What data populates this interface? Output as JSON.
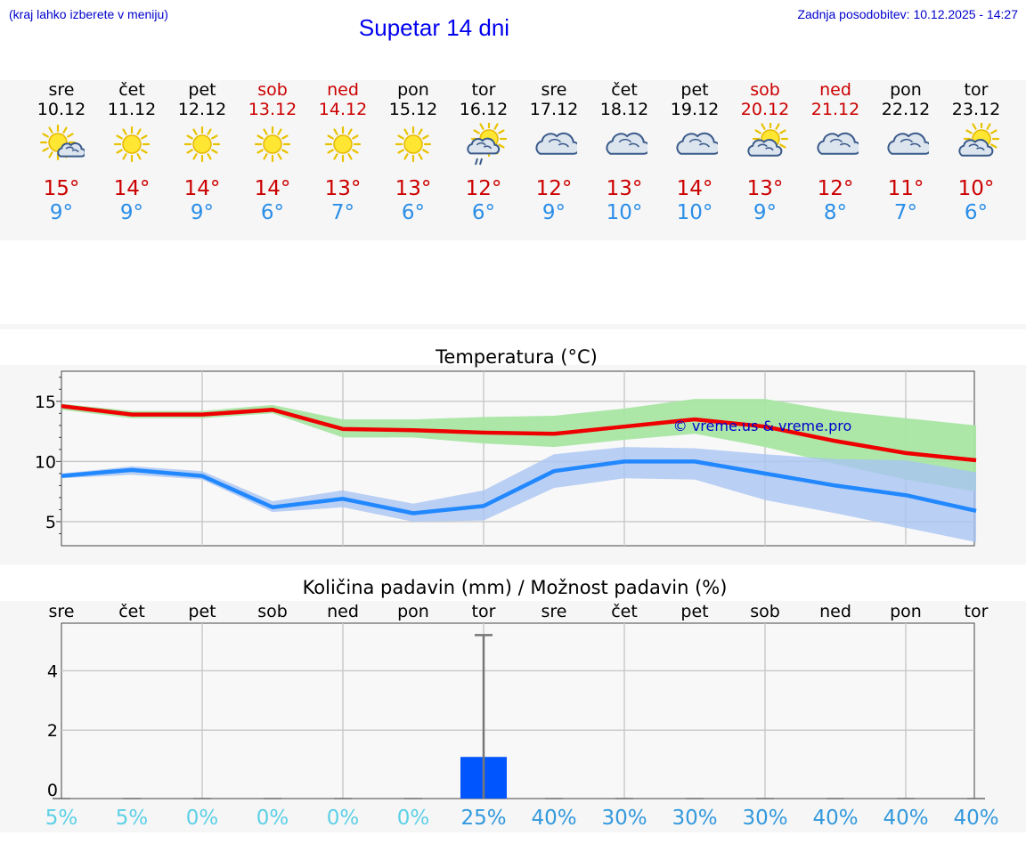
{
  "header": {
    "hint": "(kraj lahko izberete v meniju)",
    "title": "Supetar 14 dni",
    "updated": "Zadnja posodobitev: 10.12.2025 - 14:27"
  },
  "days": [
    {
      "name": "sre",
      "date": "10.12",
      "weekend": false,
      "icon": "sun-cloud",
      "max": "15°",
      "min": "9°"
    },
    {
      "name": "čet",
      "date": "11.12",
      "weekend": false,
      "icon": "sun",
      "max": "14°",
      "min": "9°"
    },
    {
      "name": "pet",
      "date": "12.12",
      "weekend": false,
      "icon": "sun",
      "max": "14°",
      "min": "9°"
    },
    {
      "name": "sob",
      "date": "13.12",
      "weekend": true,
      "icon": "sun",
      "max": "14°",
      "min": "6°"
    },
    {
      "name": "ned",
      "date": "14.12",
      "weekend": true,
      "icon": "sun",
      "max": "13°",
      "min": "7°"
    },
    {
      "name": "pon",
      "date": "15.12",
      "weekend": false,
      "icon": "sun",
      "max": "13°",
      "min": "6°"
    },
    {
      "name": "tor",
      "date": "16.12",
      "weekend": false,
      "icon": "sun-rain",
      "max": "12°",
      "min": "6°"
    },
    {
      "name": "sre",
      "date": "17.12",
      "weekend": false,
      "icon": "cloudy",
      "max": "12°",
      "min": "9°"
    },
    {
      "name": "čet",
      "date": "18.12",
      "weekend": false,
      "icon": "cloudy",
      "max": "13°",
      "min": "10°"
    },
    {
      "name": "pet",
      "date": "19.12",
      "weekend": false,
      "icon": "cloudy",
      "max": "14°",
      "min": "10°"
    },
    {
      "name": "sob",
      "date": "20.12",
      "weekend": true,
      "icon": "sun-cloud-big",
      "max": "13°",
      "min": "9°"
    },
    {
      "name": "ned",
      "date": "21.12",
      "weekend": true,
      "icon": "cloudy",
      "max": "12°",
      "min": "8°"
    },
    {
      "name": "pon",
      "date": "22.12",
      "weekend": false,
      "icon": "cloudy",
      "max": "11°",
      "min": "7°"
    },
    {
      "name": "tor",
      "date": "23.12",
      "weekend": false,
      "icon": "sun-cloud-big",
      "max": "10°",
      "min": "6°"
    }
  ],
  "colors": {
    "max_line": "#ee0000",
    "min_line": "#2288ff",
    "max_band": "#a8e6a3",
    "min_band": "#a9c4f2",
    "bar": "#0055ff",
    "weekend": "#cc0000",
    "pct_low": "#5dd0e6",
    "pct_high": "#3399dd"
  },
  "chart_data": [
    {
      "type": "line",
      "title": "Temperatura (°C)",
      "watermark": "© vreme.us & vreme.pro",
      "x": [
        0,
        1,
        2,
        3,
        4,
        5,
        6,
        7,
        8,
        9,
        10,
        11,
        12,
        13
      ],
      "ylim": [
        3,
        17.5
      ],
      "yticks": [
        5,
        10,
        15
      ],
      "series": [
        {
          "name": "max",
          "values": [
            14.6,
            13.9,
            13.9,
            14.3,
            12.7,
            12.6,
            12.4,
            12.3,
            12.9,
            13.5,
            12.9,
            11.7,
            10.7,
            10.1
          ],
          "band_low": [
            14.3,
            13.6,
            13.6,
            14.0,
            12.0,
            12.0,
            11.5,
            11.2,
            11.8,
            12.3,
            11.2,
            9.8,
            8.5,
            7.5
          ],
          "band_high": [
            14.8,
            14.2,
            14.2,
            14.7,
            13.5,
            13.5,
            13.7,
            13.8,
            14.4,
            15.2,
            15.2,
            14.2,
            13.6,
            13.0
          ]
        },
        {
          "name": "min",
          "values": [
            8.8,
            9.3,
            8.8,
            6.2,
            6.9,
            5.7,
            6.3,
            9.2,
            10.0,
            10.0,
            9.0,
            8.0,
            7.2,
            5.9
          ],
          "band_low": [
            8.6,
            8.9,
            8.5,
            5.8,
            6.2,
            5.0,
            5.1,
            7.8,
            8.6,
            8.5,
            6.8,
            5.7,
            4.5,
            3.3
          ],
          "band_high": [
            9.0,
            9.6,
            9.2,
            6.7,
            7.6,
            6.5,
            7.6,
            10.6,
            11.2,
            11.1,
            10.6,
            10.2,
            10.1,
            9.1
          ]
        }
      ]
    },
    {
      "type": "bar",
      "title": "Količina padavin (mm) / Možnost padavin (%)",
      "categories": [
        "sre",
        "čet",
        "pet",
        "sob",
        "ned",
        "pon",
        "tor",
        "sre",
        "čet",
        "pet",
        "sob",
        "ned",
        "pon",
        "tor"
      ],
      "values": [
        0,
        0,
        0,
        0,
        0,
        0,
        1.1,
        0,
        0,
        0,
        0,
        0,
        0,
        0
      ],
      "error_high": [
        0,
        0,
        0,
        0,
        0,
        0,
        5.2,
        0,
        0,
        0,
        0,
        0,
        0,
        0
      ],
      "chance": [
        "5%",
        "5%",
        "0%",
        "0%",
        "0%",
        "0%",
        "25%",
        "40%",
        "30%",
        "30%",
        "30%",
        "40%",
        "40%",
        "40%"
      ],
      "ylim": [
        -0.3,
        5.6
      ],
      "yticks": [
        0,
        2,
        4
      ]
    }
  ]
}
